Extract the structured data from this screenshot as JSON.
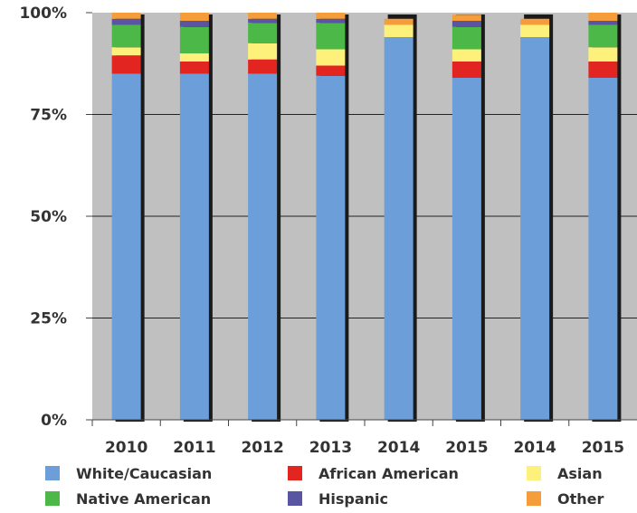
{
  "chart_data": {
    "type": "bar",
    "stacked": true,
    "percent": true,
    "categories": [
      "2010",
      "2011",
      "2012",
      "2013",
      "2014",
      "2015",
      "2014",
      "2015"
    ],
    "series": [
      {
        "name": "White/Caucasian",
        "color": "#6c9fd9",
        "values": [
          85,
          85,
          85,
          84.5,
          94,
          84,
          94,
          84
        ]
      },
      {
        "name": "African American",
        "color": "#e32522",
        "values": [
          4.5,
          3,
          3.5,
          2.5,
          0,
          4,
          0,
          4
        ]
      },
      {
        "name": "Asian",
        "color": "#fdf07b",
        "values": [
          2,
          2,
          4,
          4,
          3,
          3,
          3,
          3.5
        ]
      },
      {
        "name": "Native American",
        "color": "#4cb847",
        "values": [
          5.5,
          6.5,
          5,
          6.5,
          0,
          5.5,
          0,
          5.5
        ]
      },
      {
        "name": "Hispanic",
        "color": "#5a55a3",
        "values": [
          1.5,
          1.5,
          1,
          1,
          0,
          1.5,
          0,
          1
        ]
      },
      {
        "name": "Other",
        "color": "#f59d3a",
        "values": [
          1.5,
          2,
          1.5,
          1.5,
          1.5,
          1.5,
          1.5,
          2
        ]
      }
    ],
    "ylim": [
      0,
      100
    ],
    "yticks": [
      "0%",
      "25%",
      "50%",
      "75%",
      "100%"
    ],
    "grid": true,
    "plot_background": "#c0c0c0",
    "legend_position": "bottom"
  }
}
